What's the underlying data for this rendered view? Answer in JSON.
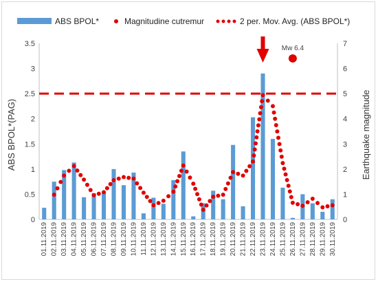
{
  "chart_data": {
    "type": "bar",
    "categories": [
      "01.11.2019",
      "02.11.2019",
      "03.11.2019",
      "04.11.2019",
      "05.11.2019",
      "06.11.2019",
      "07.11.2019",
      "08.11.2019",
      "09.11.2019",
      "10.11.2019",
      "11.11.2019",
      "12.11.2019",
      "13.11.2019",
      "14.11.2019",
      "15.11.2019",
      "16.11.2019",
      "17.11.2019",
      "18.11.2019",
      "19.11.2019",
      "20.11.2019",
      "21.11.2019",
      "22.11.2019",
      "23.11.2019",
      "24.11.2019",
      "25.11.2019",
      "26.11.2019",
      "27.11.2019",
      "28.11.2019",
      "29.11.2019",
      "30.11.2019"
    ],
    "series": [
      {
        "name": "ABS BPOL*",
        "kind": "bar",
        "axis": "left",
        "color": "#5b9bd5",
        "values": [
          0.23,
          0.75,
          0.98,
          1.13,
          0.44,
          0.52,
          0.55,
          1.0,
          0.68,
          0.93,
          0.12,
          0.43,
          0.31,
          0.78,
          1.35,
          0.06,
          0.32,
          0.57,
          0.4,
          1.48,
          0.26,
          2.03,
          2.9,
          1.6,
          0.63,
          0.03,
          0.5,
          0.32,
          0.15,
          0.4
        ]
      },
      {
        "name": "Magnitudine cutremur",
        "kind": "marker",
        "axis": "right",
        "color": "#e00000",
        "x": [
          "26.11.2019"
        ],
        "values": [
          6.4
        ]
      },
      {
        "name": "2 per. Mov. Avg. (ABS BPOL*)",
        "kind": "dotted-line",
        "axis": "left",
        "color": "#e00000",
        "values": [
          null,
          0.49,
          0.87,
          1.06,
          0.79,
          0.48,
          0.54,
          0.78,
          0.84,
          0.81,
          0.53,
          0.28,
          0.37,
          0.55,
          1.07,
          0.71,
          0.19,
          0.45,
          0.49,
          0.94,
          0.87,
          1.15,
          2.47,
          2.25,
          1.12,
          0.33,
          0.27,
          0.41,
          0.24,
          0.28
        ]
      }
    ],
    "ylabel": "ABS BPOL*(PAG)",
    "y2label": "Earthquake magnitude",
    "ylim": [
      0,
      3.5
    ],
    "y2lim": [
      0,
      7
    ],
    "yticks": [
      "0",
      "0.5",
      "1",
      "1.5",
      "2",
      "2.5",
      "3",
      "3.5"
    ],
    "y2ticks": [
      "0",
      "1",
      "2",
      "3",
      "4",
      "5",
      "6",
      "7"
    ],
    "threshold": {
      "value": 2.5,
      "color": "#e00000",
      "style": "dashed"
    },
    "arrow": {
      "category": "23.11.2019",
      "color": "#e00000"
    },
    "annotation": "Mw 6.4",
    "annotation_color": "#c00000",
    "legend_position": "top",
    "grid": false
  }
}
